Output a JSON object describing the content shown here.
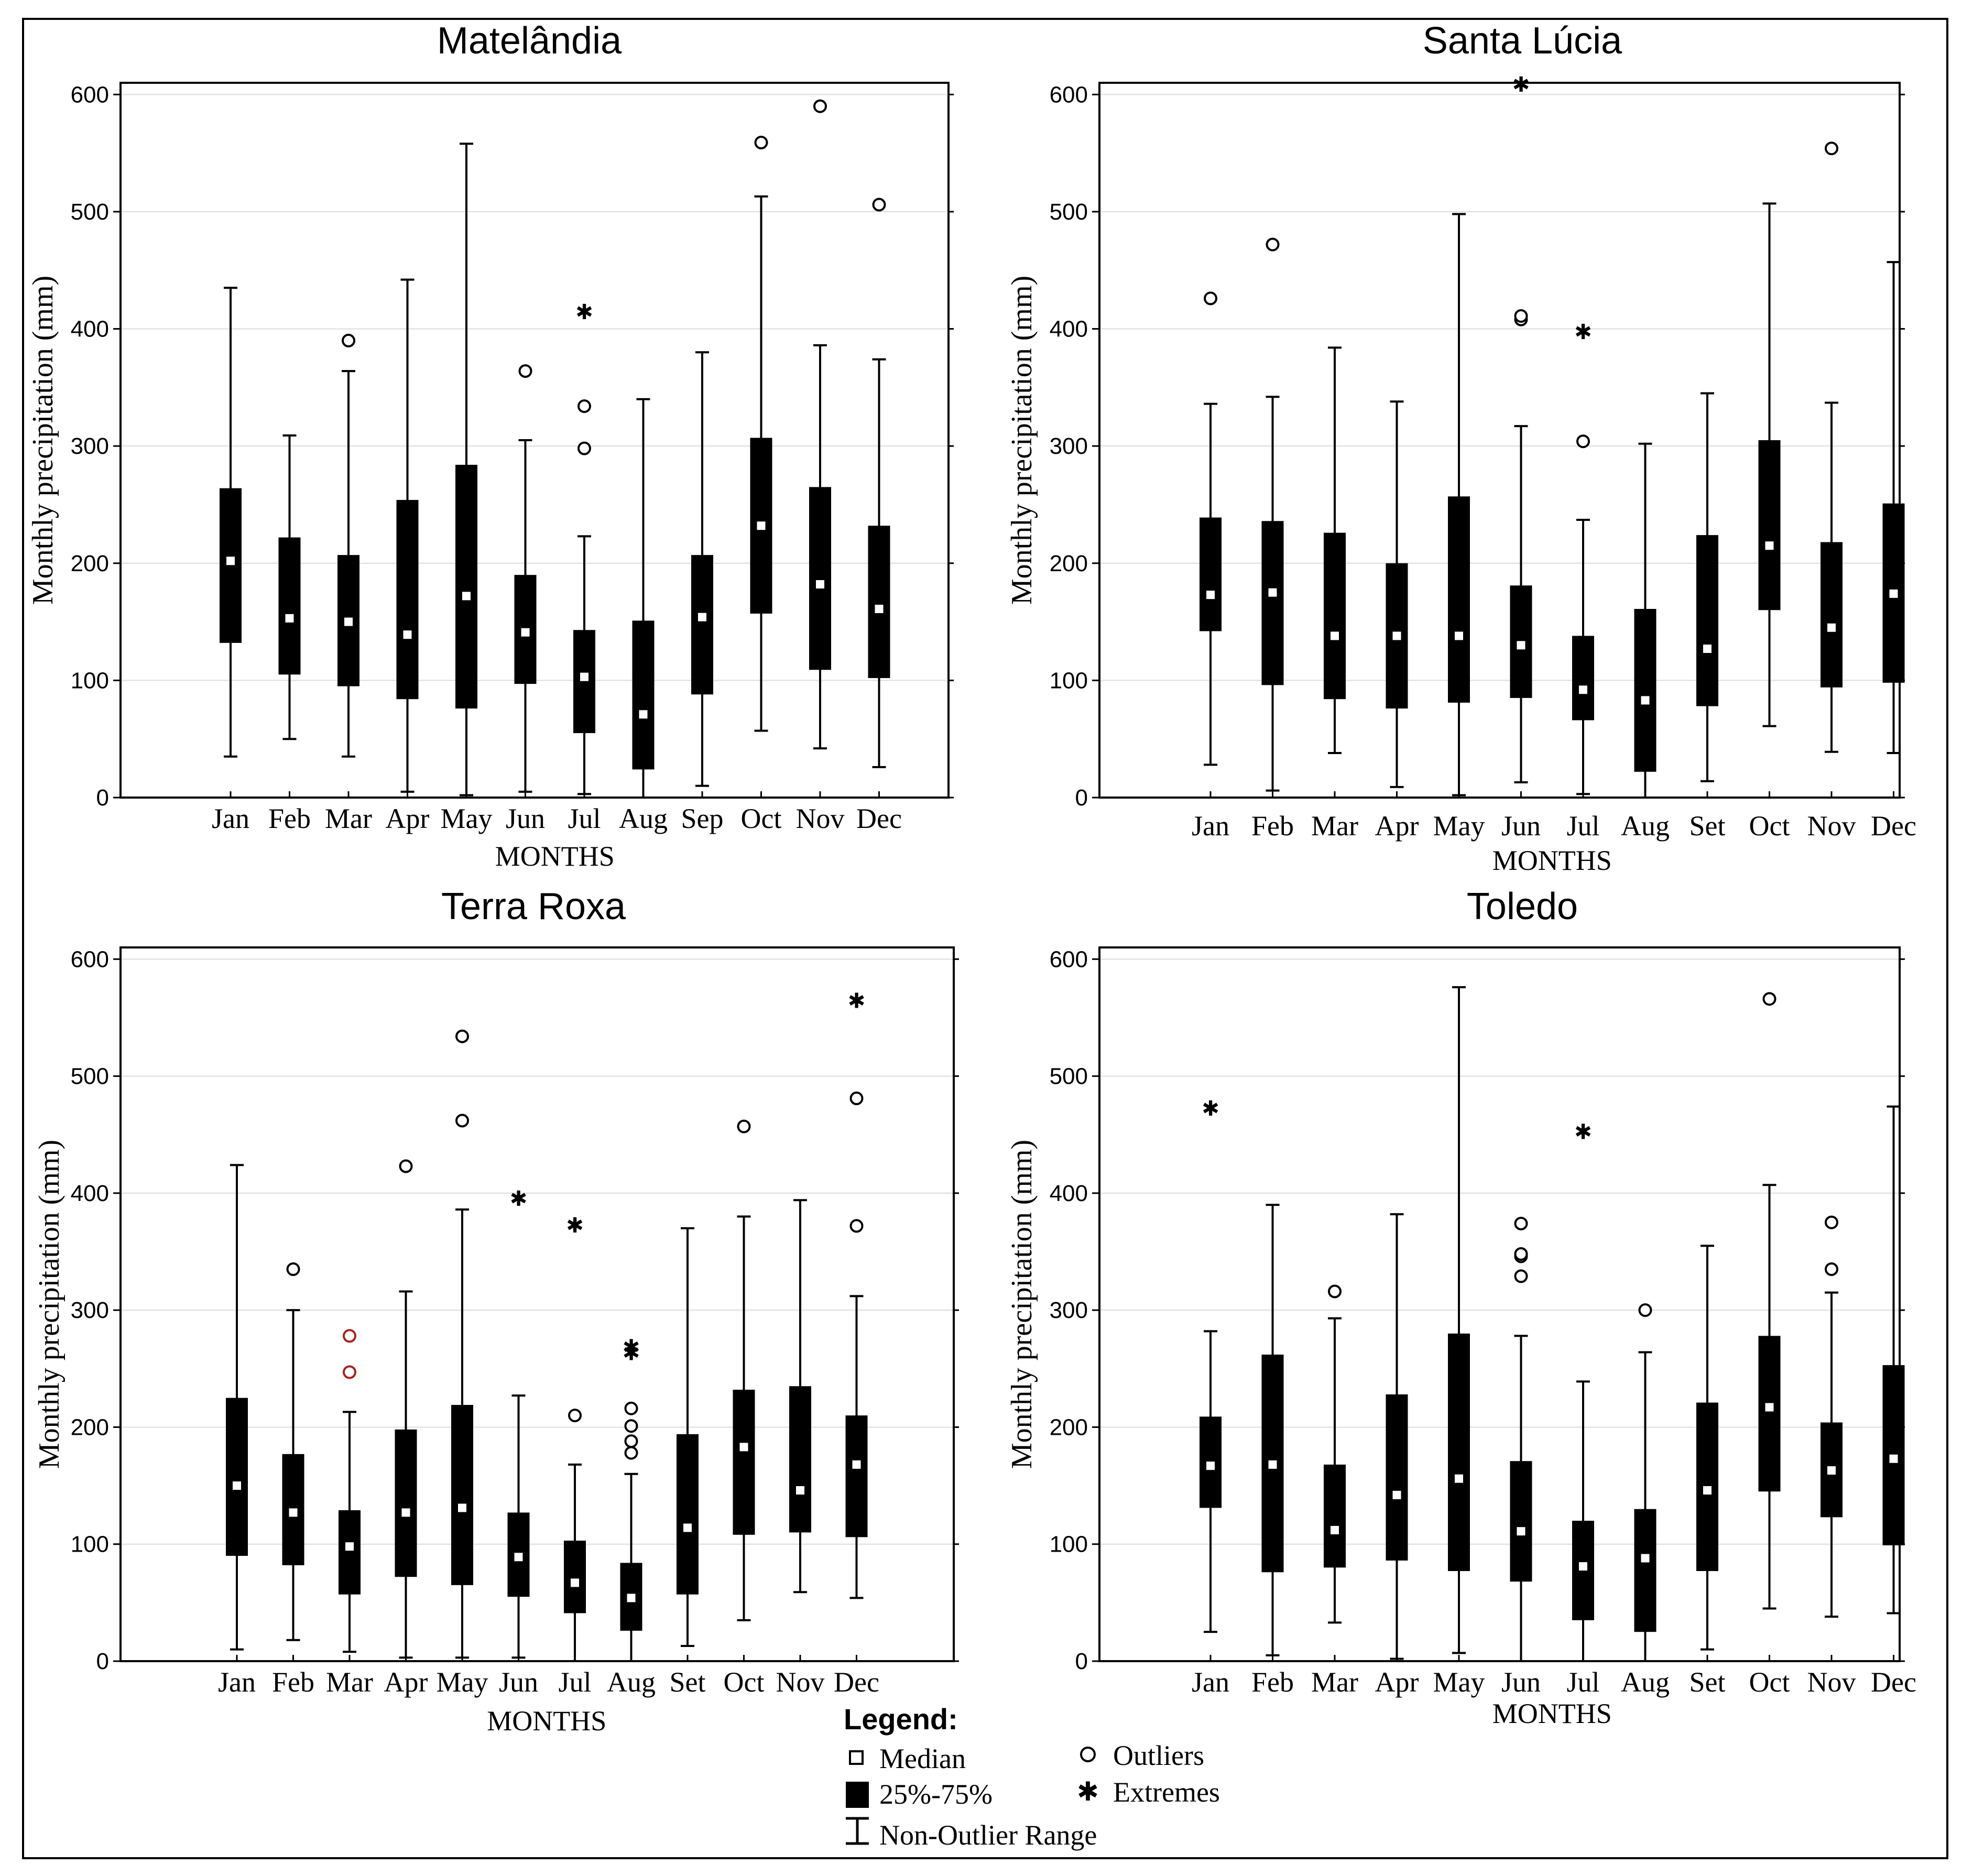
{
  "figure": {
    "legend": {
      "title": "Legend:",
      "median": "Median",
      "iqr": "25%-75%",
      "range": "Non-Outlier Range",
      "outliers": "Outliers",
      "extremes": "Extremes"
    }
  },
  "chart_data": [
    {
      "type": "box",
      "title": "Matelândia",
      "xlabel": "MONTHS",
      "ylabel": "Monthly precipitation (mm)",
      "ylim": [
        0,
        610
      ],
      "yticks": [
        0,
        100,
        200,
        300,
        400,
        500,
        600
      ],
      "categories": [
        "Jan",
        "Feb",
        "Mar",
        "Apr",
        "May",
        "Jun",
        "Jul",
        "Aug",
        "Sep",
        "Oct",
        "Nov",
        "Dec"
      ],
      "boxes": [
        {
          "min": 35,
          "q1": 132,
          "median": 202,
          "q3": 264,
          "max": 435,
          "outliers": [],
          "extremes": []
        },
        {
          "min": 50,
          "q1": 105,
          "median": 153,
          "q3": 222,
          "max": 309,
          "outliers": [],
          "extremes": []
        },
        {
          "min": 35,
          "q1": 95,
          "median": 150,
          "q3": 207,
          "max": 364,
          "outliers": [
            390
          ],
          "extremes": []
        },
        {
          "min": 5,
          "q1": 84,
          "median": 139,
          "q3": 254,
          "max": 442,
          "outliers": [],
          "extremes": []
        },
        {
          "min": 2,
          "q1": 76,
          "median": 172,
          "q3": 284,
          "max": 558,
          "outliers": [],
          "extremes": []
        },
        {
          "min": 5,
          "q1": 97,
          "median": 141,
          "q3": 190,
          "max": 305,
          "outliers": [
            364
          ],
          "extremes": []
        },
        {
          "min": 3,
          "q1": 55,
          "median": 103,
          "q3": 143,
          "max": 223,
          "outliers": [
            298,
            334
          ],
          "extremes": [
            415
          ]
        },
        {
          "min": 0,
          "q1": 24,
          "median": 71,
          "q3": 151,
          "max": 340,
          "outliers": [],
          "extremes": []
        },
        {
          "min": 10,
          "q1": 88,
          "median": 154,
          "q3": 207,
          "max": 380,
          "outliers": [],
          "extremes": []
        },
        {
          "min": 57,
          "q1": 157,
          "median": 232,
          "q3": 307,
          "max": 513,
          "outliers": [
            559
          ],
          "extremes": []
        },
        {
          "min": 42,
          "q1": 109,
          "median": 182,
          "q3": 265,
          "max": 386,
          "outliers": [
            590
          ],
          "extremes": []
        },
        {
          "min": 26,
          "q1": 102,
          "median": 161,
          "q3": 232,
          "max": 374,
          "outliers": [
            506
          ],
          "extremes": []
        }
      ]
    },
    {
      "type": "box",
      "title": "Santa Lúcia",
      "xlabel": "MONTHS",
      "ylabel": "Monthly precipitation (mm)",
      "ylim": [
        0,
        610
      ],
      "yticks": [
        0,
        100,
        200,
        300,
        400,
        500,
        600
      ],
      "categories": [
        "Jan",
        "Feb",
        "Mar",
        "Apr",
        "May",
        "Jun",
        "Jul",
        "Aug",
        "Set",
        "Oct",
        "Nov",
        "Dec"
      ],
      "boxes": [
        {
          "min": 28,
          "q1": 142,
          "median": 173,
          "q3": 239,
          "max": 336,
          "outliers": [
            426
          ],
          "extremes": []
        },
        {
          "min": 6,
          "q1": 96,
          "median": 175,
          "q3": 236,
          "max": 342,
          "outliers": [
            472
          ],
          "extremes": []
        },
        {
          "min": 38,
          "q1": 84,
          "median": 138,
          "q3": 226,
          "max": 384,
          "outliers": [],
          "extremes": []
        },
        {
          "min": 9,
          "q1": 76,
          "median": 138,
          "q3": 200,
          "max": 338,
          "outliers": [],
          "extremes": []
        },
        {
          "min": 2,
          "q1": 81,
          "median": 138,
          "q3": 257,
          "max": 498,
          "outliers": [],
          "extremes": []
        },
        {
          "min": 13,
          "q1": 85,
          "median": 130,
          "q3": 181,
          "max": 317,
          "outliers": [
            408,
            411
          ],
          "extremes": [
            609
          ]
        },
        {
          "min": 3,
          "q1": 66,
          "median": 92,
          "q3": 138,
          "max": 237,
          "outliers": [
            304
          ],
          "extremes": [
            398
          ]
        },
        {
          "min": 0,
          "q1": 22,
          "median": 83,
          "q3": 161,
          "max": 302,
          "outliers": [],
          "extremes": []
        },
        {
          "min": 14,
          "q1": 78,
          "median": 127,
          "q3": 224,
          "max": 345,
          "outliers": [],
          "extremes": []
        },
        {
          "min": 61,
          "q1": 160,
          "median": 215,
          "q3": 305,
          "max": 507,
          "outliers": [],
          "extremes": []
        },
        {
          "min": 39,
          "q1": 94,
          "median": 145,
          "q3": 218,
          "max": 337,
          "outliers": [
            554
          ],
          "extremes": []
        },
        {
          "min": 38,
          "q1": 98,
          "median": 174,
          "q3": 251,
          "max": 457,
          "outliers": [],
          "extremes": []
        }
      ]
    },
    {
      "type": "box",
      "title": "Terra Roxa",
      "xlabel": "MONTHS",
      "ylabel": "Monthly precipitation (mm)",
      "ylim": [
        0,
        610
      ],
      "yticks": [
        0,
        100,
        200,
        300,
        400,
        500,
        600
      ],
      "categories": [
        "Jan",
        "Feb",
        "Mar",
        "Apr",
        "May",
        "Jun",
        "Jul",
        "Aug",
        "Set",
        "Oct",
        "Nov",
        "Dec"
      ],
      "boxes": [
        {
          "min": 10,
          "q1": 90,
          "median": 150,
          "q3": 225,
          "max": 424,
          "outliers": [],
          "extremes": []
        },
        {
          "min": 18,
          "q1": 82,
          "median": 127,
          "q3": 177,
          "max": 300,
          "outliers": [
            335
          ],
          "extremes": []
        },
        {
          "min": 8,
          "q1": 57,
          "median": 98,
          "q3": 129,
          "max": 213,
          "outliers": [
            247,
            278
          ],
          "extremes": []
        },
        {
          "min": 3,
          "q1": 72,
          "median": 127,
          "q3": 198,
          "max": 316,
          "outliers": [
            423
          ],
          "extremes": []
        },
        {
          "min": 3,
          "q1": 65,
          "median": 131,
          "q3": 219,
          "max": 386,
          "outliers": [
            462,
            534
          ],
          "extremes": []
        },
        {
          "min": 3,
          "q1": 55,
          "median": 89,
          "q3": 127,
          "max": 227,
          "outliers": [],
          "extremes": [
            396
          ]
        },
        {
          "min": 0,
          "q1": 41,
          "median": 67,
          "q3": 103,
          "max": 168,
          "outliers": [
            210
          ],
          "extremes": [
            373
          ]
        },
        {
          "min": 0,
          "q1": 26,
          "median": 54,
          "q3": 84,
          "max": 160,
          "outliers": [
            178,
            188,
            201,
            216
          ],
          "extremes": [
            264,
            269
          ]
        },
        {
          "min": 13,
          "q1": 57,
          "median": 114,
          "q3": 194,
          "max": 370,
          "outliers": [],
          "extremes": []
        },
        {
          "min": 35,
          "q1": 108,
          "median": 183,
          "q3": 232,
          "max": 380,
          "outliers": [
            457
          ],
          "extremes": []
        },
        {
          "min": 59,
          "q1": 110,
          "median": 146,
          "q3": 235,
          "max": 394,
          "outliers": [],
          "extremes": []
        },
        {
          "min": 54,
          "q1": 106,
          "median": 168,
          "q3": 210,
          "max": 312,
          "outliers": [
            372,
            481
          ],
          "extremes": [
            565
          ]
        }
      ]
    },
    {
      "type": "box",
      "title": "Toledo",
      "xlabel": "MONTHS",
      "ylabel": "Monthly precipitation (mm)",
      "ylim": [
        0,
        610
      ],
      "yticks": [
        0,
        100,
        200,
        300,
        400,
        500,
        600
      ],
      "categories": [
        "Jan",
        "Feb",
        "Mar",
        "Apr",
        "May",
        "Jun",
        "Jul",
        "Aug",
        "Set",
        "Oct",
        "Nov",
        "Dec"
      ],
      "boxes": [
        {
          "min": 25,
          "q1": 131,
          "median": 167,
          "q3": 209,
          "max": 282,
          "outliers": [],
          "extremes": [
            473
          ]
        },
        {
          "min": 5,
          "q1": 76,
          "median": 168,
          "q3": 262,
          "max": 390,
          "outliers": [],
          "extremes": []
        },
        {
          "min": 33,
          "q1": 80,
          "median": 112,
          "q3": 168,
          "max": 293,
          "outliers": [
            316
          ],
          "extremes": []
        },
        {
          "min": 2,
          "q1": 86,
          "median": 142,
          "q3": 228,
          "max": 382,
          "outliers": [],
          "extremes": []
        },
        {
          "min": 7,
          "q1": 77,
          "median": 156,
          "q3": 280,
          "max": 576,
          "outliers": [],
          "extremes": []
        },
        {
          "min": 0,
          "q1": 68,
          "median": 111,
          "q3": 171,
          "max": 278,
          "outliers": [
            329,
            346,
            348,
            374
          ],
          "extremes": []
        },
        {
          "min": 0,
          "q1": 35,
          "median": 81,
          "q3": 120,
          "max": 239,
          "outliers": [],
          "extremes": [
            453
          ]
        },
        {
          "min": 0,
          "q1": 25,
          "median": 88,
          "q3": 130,
          "max": 264,
          "outliers": [
            300
          ],
          "extremes": []
        },
        {
          "min": 10,
          "q1": 77,
          "median": 146,
          "q3": 221,
          "max": 355,
          "outliers": [],
          "extremes": []
        },
        {
          "min": 45,
          "q1": 145,
          "median": 217,
          "q3": 278,
          "max": 407,
          "outliers": [
            566
          ],
          "extremes": []
        },
        {
          "min": 38,
          "q1": 123,
          "median": 163,
          "q3": 204,
          "max": 315,
          "outliers": [
            335,
            375
          ],
          "extremes": []
        },
        {
          "min": 41,
          "q1": 99,
          "median": 173,
          "q3": 253,
          "max": 474,
          "outliers": [],
          "extremes": []
        }
      ]
    }
  ]
}
